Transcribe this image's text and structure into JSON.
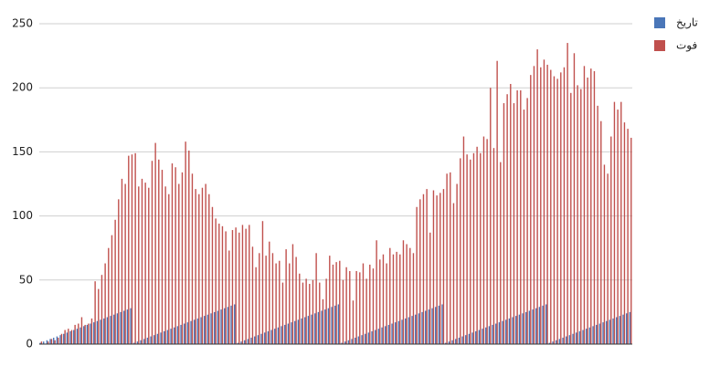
{
  "chart_data": {
    "type": "bar",
    "ylim": [
      0,
      250
    ],
    "yticks": [
      0,
      50,
      100,
      150,
      200,
      250
    ],
    "grid": true,
    "legend": "right",
    "series": [
      {
        "name": "تاریخ",
        "color": "#4a76b8",
        "values": [
          1,
          2,
          3,
          4,
          5,
          6,
          7,
          8,
          9,
          10,
          11,
          12,
          13,
          14,
          15,
          16,
          17,
          18,
          19,
          20,
          21,
          22,
          23,
          24,
          25,
          26,
          27,
          28,
          1,
          2,
          3,
          4,
          5,
          6,
          7,
          8,
          9,
          10,
          11,
          12,
          13,
          14,
          15,
          16,
          17,
          18,
          19,
          20,
          21,
          22,
          23,
          24,
          25,
          26,
          27,
          28,
          29,
          30,
          31,
          1,
          2,
          3,
          4,
          5,
          6,
          7,
          8,
          9,
          10,
          11,
          12,
          13,
          14,
          15,
          16,
          17,
          18,
          19,
          20,
          21,
          22,
          23,
          24,
          25,
          26,
          27,
          28,
          29,
          30,
          31,
          1,
          2,
          3,
          4,
          5,
          6,
          7,
          8,
          9,
          10,
          11,
          12,
          13,
          14,
          15,
          16,
          17,
          18,
          19,
          20,
          21,
          22,
          23,
          24,
          25,
          26,
          27,
          28,
          29,
          30,
          31,
          1,
          2,
          3,
          4,
          5,
          6,
          7,
          8,
          9,
          10,
          11,
          12,
          13,
          14,
          15,
          16,
          17,
          18,
          19,
          20,
          21,
          22,
          23,
          24,
          25,
          26,
          27,
          28,
          29,
          30,
          31,
          1,
          2,
          3,
          4,
          5,
          6,
          7,
          8,
          9,
          10,
          11,
          12,
          13,
          14,
          15,
          16,
          17,
          18,
          19,
          20,
          21,
          22,
          23,
          24,
          25
        ]
      },
      {
        "name": "فوت",
        "color": "#c0504d",
        "values": [
          2,
          0,
          2,
          4,
          3,
          5,
          8,
          11,
          12,
          11,
          15,
          16,
          21,
          15,
          16,
          20,
          49,
          43,
          54,
          63,
          75,
          85,
          97,
          113,
          129,
          125,
          147,
          148,
          149,
          123,
          129,
          126,
          122,
          143,
          157,
          144,
          136,
          123,
          117,
          141,
          138,
          125,
          134,
          158,
          151,
          133,
          121,
          117,
          122,
          125,
          117,
          107,
          98,
          94,
          92,
          88,
          73,
          89,
          91,
          87,
          93,
          90,
          93,
          76,
          60,
          71,
          96,
          69,
          80,
          71,
          63,
          65,
          48,
          74,
          63,
          78,
          68,
          55,
          48,
          51,
          47,
          50,
          71,
          48,
          35,
          51,
          69,
          62,
          64,
          65,
          50,
          60,
          57,
          34,
          57,
          56,
          63,
          51,
          62,
          59,
          81,
          66,
          70,
          63,
          75,
          70,
          72,
          70,
          81,
          78,
          75,
          71,
          107,
          113,
          117,
          121,
          87,
          120,
          116,
          118,
          121,
          133,
          134,
          110,
          125,
          145,
          162,
          148,
          144,
          149,
          154,
          149,
          162,
          160,
          200,
          153,
          221,
          142,
          188,
          195,
          203,
          188,
          198,
          198,
          183,
          192,
          210,
          217,
          230,
          216,
          222,
          218,
          214,
          209,
          207,
          212,
          216,
          235,
          196,
          227,
          202,
          199,
          217,
          208,
          215,
          213,
          186,
          174,
          140,
          133,
          162,
          189,
          183,
          189,
          173,
          168,
          161
        ]
      }
    ]
  }
}
